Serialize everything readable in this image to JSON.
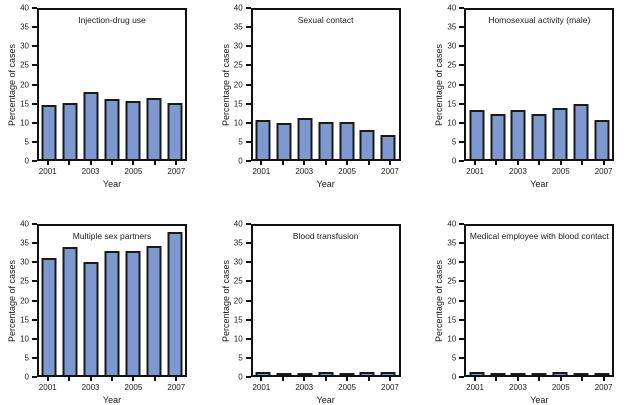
{
  "figure": {
    "colors": {
      "bar_fill": "#7e98d0",
      "bar_border": "#1a1a1a",
      "axis": "#111111",
      "text": "#1a1a1a",
      "background": "#ffffff"
    }
  },
  "chart_data": [
    {
      "type": "bar",
      "title": "Injection-drug use",
      "xlabel": "Year",
      "ylabel": "Percentage of cases",
      "categories": [
        "2001",
        "2002",
        "2003",
        "2004",
        "2005",
        "2006",
        "2007"
      ],
      "values": [
        14.4,
        15.0,
        17.9,
        16.0,
        15.6,
        16.3,
        15.0
      ],
      "ylim": [
        0,
        40
      ],
      "yticks": [
        0,
        5,
        10,
        15,
        20,
        25,
        30,
        35,
        40
      ],
      "label_every": 2,
      "grid": false,
      "legend": "none"
    },
    {
      "type": "bar",
      "title": "Sexual contact",
      "xlabel": "Year",
      "ylabel": "Percentage of cases",
      "categories": [
        "2001",
        "2002",
        "2003",
        "2004",
        "2005",
        "2006",
        "2007"
      ],
      "values": [
        10.4,
        9.6,
        10.9,
        9.9,
        9.9,
        7.9,
        6.4
      ],
      "ylim": [
        0,
        40
      ],
      "yticks": [
        0,
        5,
        10,
        15,
        20,
        25,
        30,
        35,
        40
      ],
      "label_every": 2,
      "grid": false,
      "legend": "none"
    },
    {
      "type": "bar",
      "title": "Homosexual activity (male)",
      "xlabel": "Year",
      "ylabel": "Percentage of cases",
      "categories": [
        "2001",
        "2002",
        "2003",
        "2004",
        "2005",
        "2006",
        "2007"
      ],
      "values": [
        13.2,
        12.0,
        13.2,
        12.2,
        13.6,
        14.7,
        10.5
      ],
      "ylim": [
        0,
        40
      ],
      "yticks": [
        0,
        5,
        10,
        15,
        20,
        25,
        30,
        35,
        40
      ],
      "label_every": 2,
      "grid": false,
      "legend": "none"
    },
    {
      "type": "bar",
      "title": "Multiple sex partners",
      "xlabel": "Year",
      "ylabel": "Percentage of cases",
      "categories": [
        "2001",
        "2002",
        "2003",
        "2004",
        "2005",
        "2006",
        "2007"
      ],
      "values": [
        31.5,
        34.5,
        30.3,
        33.2,
        33.3,
        34.7,
        38.5
      ],
      "ylim": [
        0,
        40
      ],
      "yticks": [
        0,
        5,
        10,
        15,
        20,
        25,
        30,
        35,
        40
      ],
      "label_every": 2,
      "grid": false,
      "legend": "none"
    },
    {
      "type": "bar",
      "title": "Blood transfusion",
      "xlabel": "Year",
      "ylabel": "Percentage of cases",
      "categories": [
        "2001",
        "2002",
        "2003",
        "2004",
        "2005",
        "2006",
        "2007"
      ],
      "values": [
        0.9,
        0.5,
        0.5,
        0.9,
        0.4,
        0.9,
        0.9
      ],
      "ylim": [
        0,
        40
      ],
      "yticks": [
        0,
        5,
        10,
        15,
        20,
        25,
        30,
        35,
        40
      ],
      "label_every": 2,
      "grid": false,
      "legend": "none"
    },
    {
      "type": "bar",
      "title": "Medical employee with blood contact",
      "xlabel": "Year",
      "ylabel": "Percentage of cases",
      "categories": [
        "2001",
        "2002",
        "2003",
        "2004",
        "2005",
        "2006",
        "2007"
      ],
      "values": [
        0.9,
        0.6,
        0.6,
        0.6,
        0.9,
        0.6,
        0.6
      ],
      "ylim": [
        0,
        40
      ],
      "yticks": [
        0,
        5,
        10,
        15,
        20,
        25,
        30,
        35,
        40
      ],
      "label_every": 2,
      "grid": false,
      "legend": "none"
    }
  ]
}
